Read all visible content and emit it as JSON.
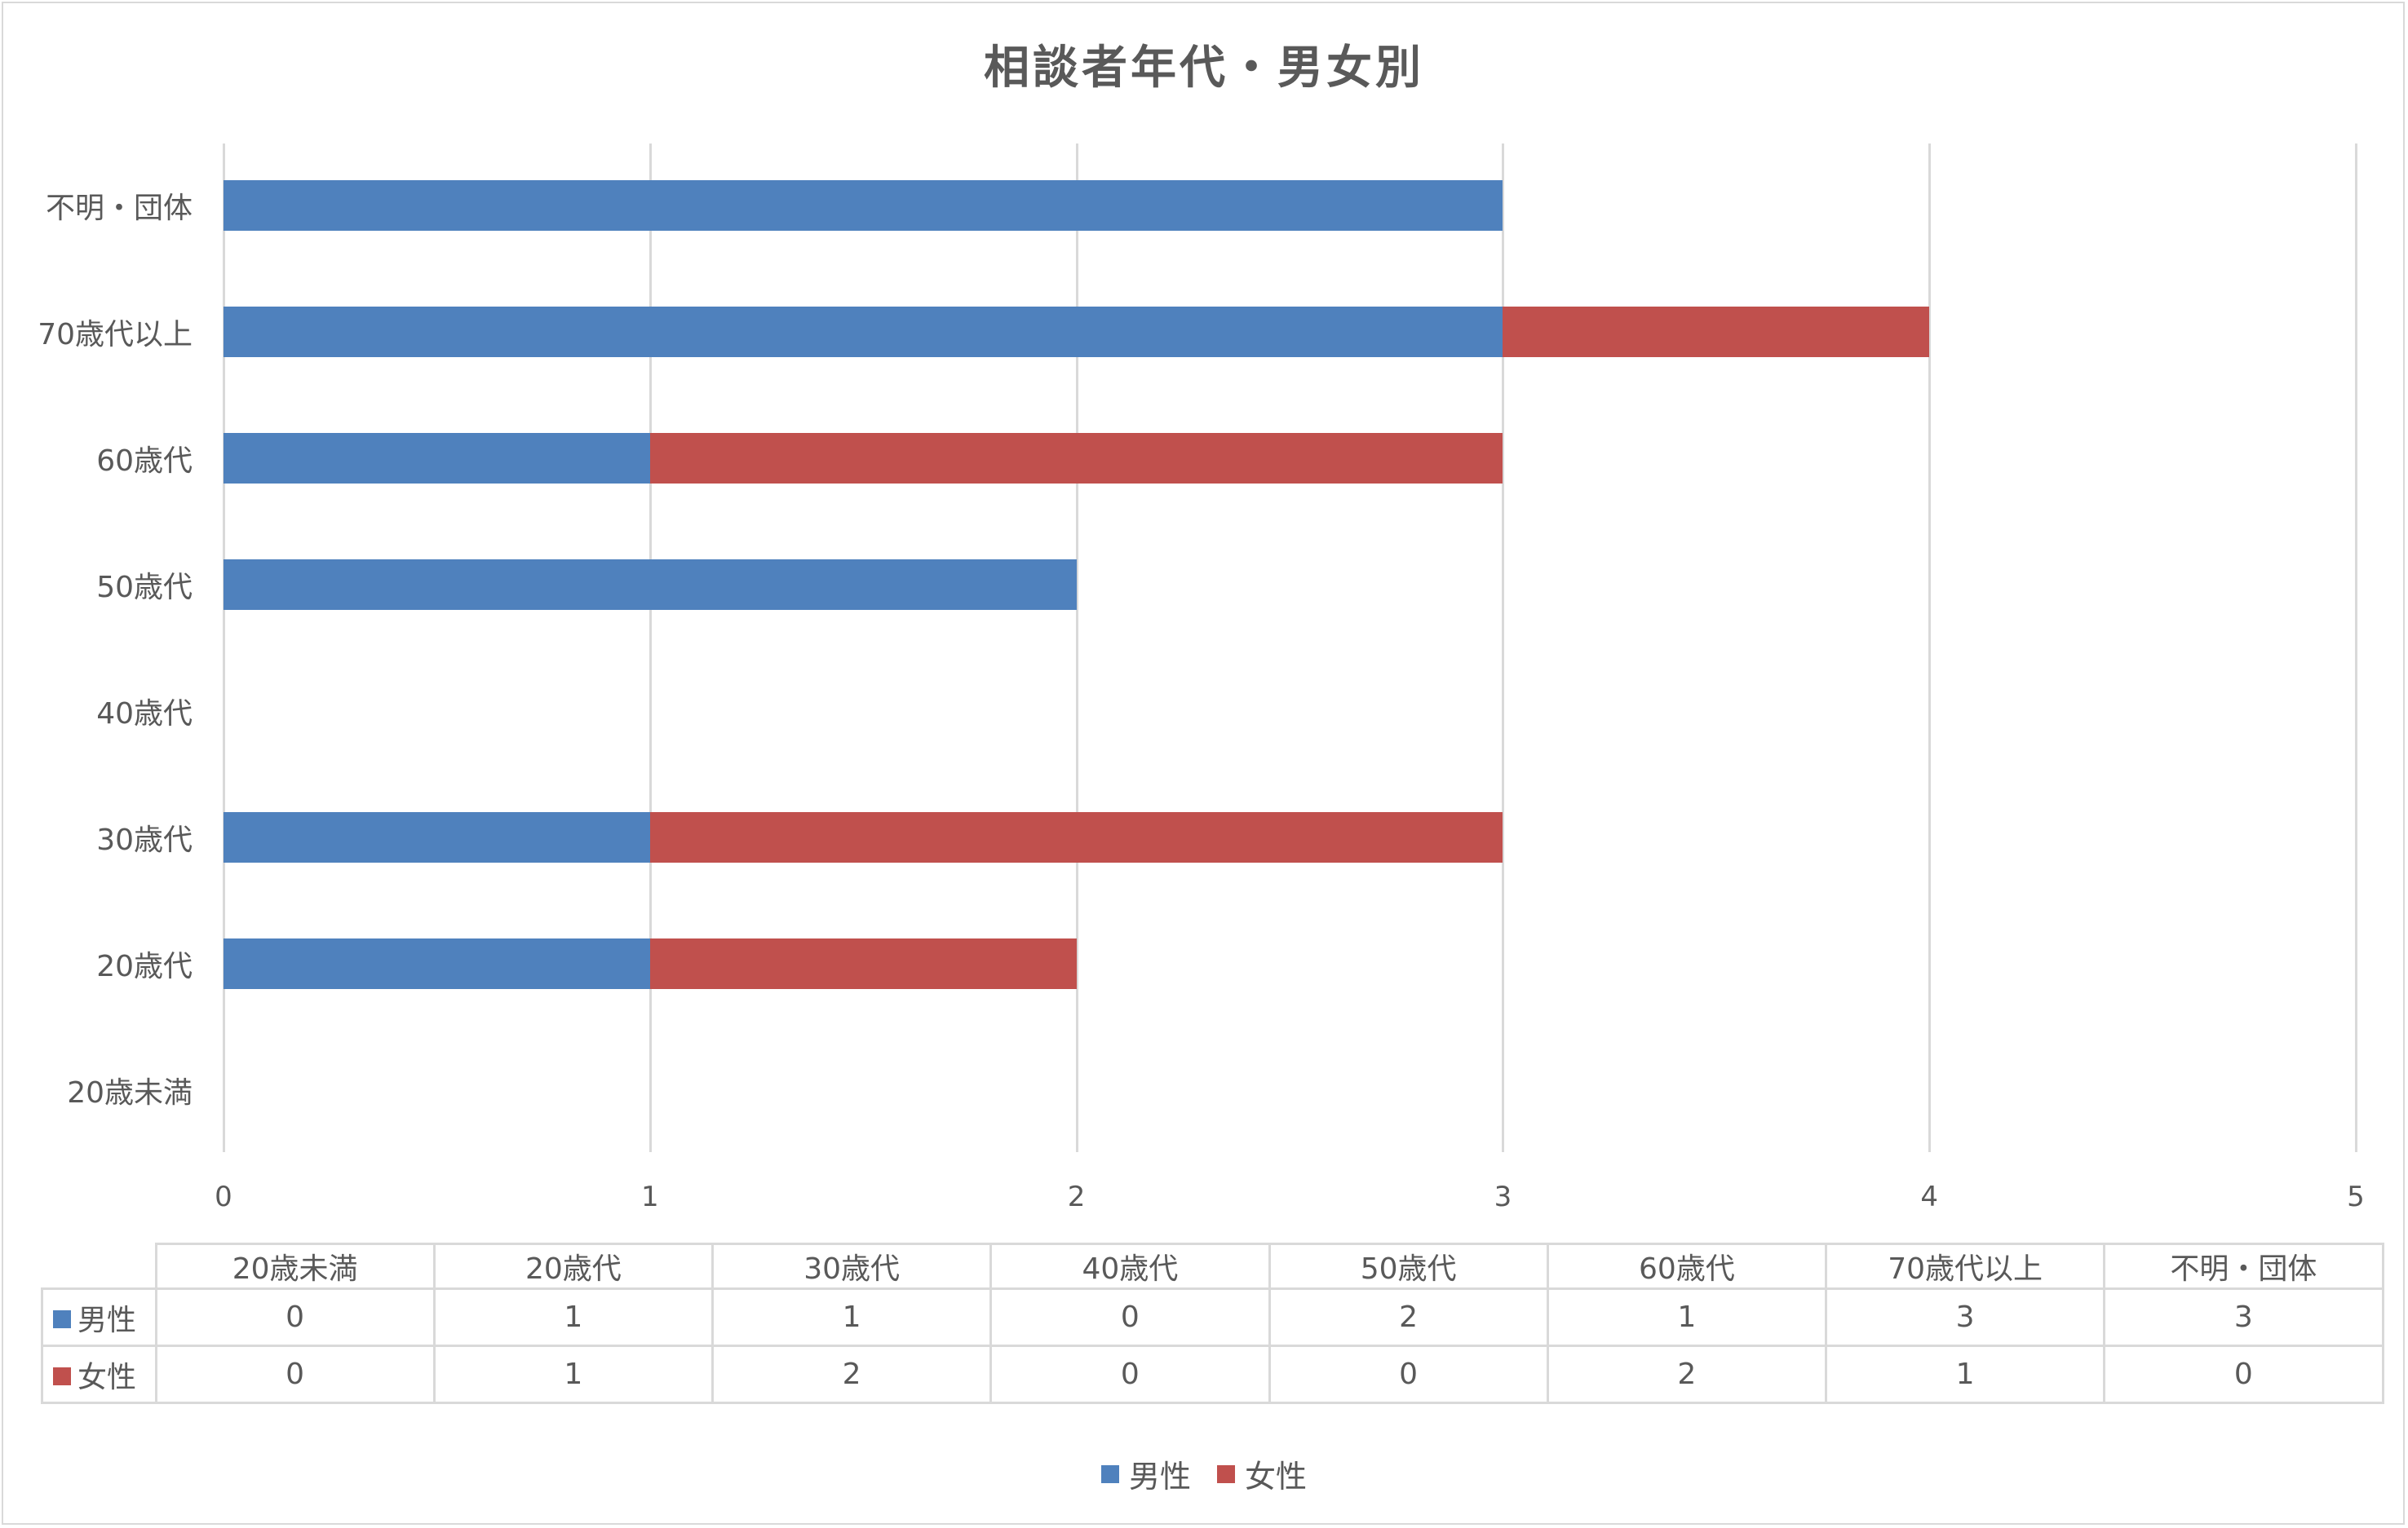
{
  "chart_data": {
    "type": "bar",
    "orientation": "horizontal",
    "stacked": true,
    "title": "相談者年代・男女別",
    "xlabel": "",
    "ylabel": "",
    "xlim": [
      0,
      5
    ],
    "x_ticks": [
      "0",
      "1",
      "2",
      "3",
      "4",
      "5"
    ],
    "grid": true,
    "legend_position": "bottom",
    "categories": [
      "20歳未満",
      "20歳代",
      "30歳代",
      "40歳代",
      "50歳代",
      "60歳代",
      "70歳代以上",
      "不明・団体"
    ],
    "series": [
      {
        "name": "男性",
        "color": "#4f81bd",
        "values": [
          0,
          1,
          1,
          0,
          2,
          1,
          3,
          3
        ]
      },
      {
        "name": "女性",
        "color": "#c0504d",
        "values": [
          0,
          1,
          2,
          0,
          0,
          2,
          1,
          0
        ]
      }
    ],
    "data_table": true
  },
  "title": "相談者年代・男女別",
  "axis": {
    "y_labels_top_to_bottom": [
      "不明・団体",
      "70歳代以上",
      "60歳代",
      "50歳代",
      "40歳代",
      "30歳代",
      "20歳代",
      "20歳未満"
    ],
    "x_ticks": [
      "0",
      "1",
      "2",
      "3",
      "4",
      "5"
    ]
  },
  "table": {
    "headers": [
      "20歳未満",
      "20歳代",
      "30歳代",
      "40歳代",
      "50歳代",
      "60歳代",
      "70歳代以上",
      "不明・団体"
    ],
    "rows": [
      {
        "label": "男性",
        "color": "#4f81bd",
        "values": [
          "0",
          "1",
          "1",
          "0",
          "2",
          "1",
          "3",
          "3"
        ]
      },
      {
        "label": "女性",
        "color": "#c0504d",
        "values": [
          "0",
          "1",
          "2",
          "0",
          "0",
          "2",
          "1",
          "0"
        ]
      }
    ]
  },
  "legend": [
    {
      "label": "男性",
      "color": "#4f81bd"
    },
    {
      "label": "女性",
      "color": "#c0504d"
    }
  ]
}
